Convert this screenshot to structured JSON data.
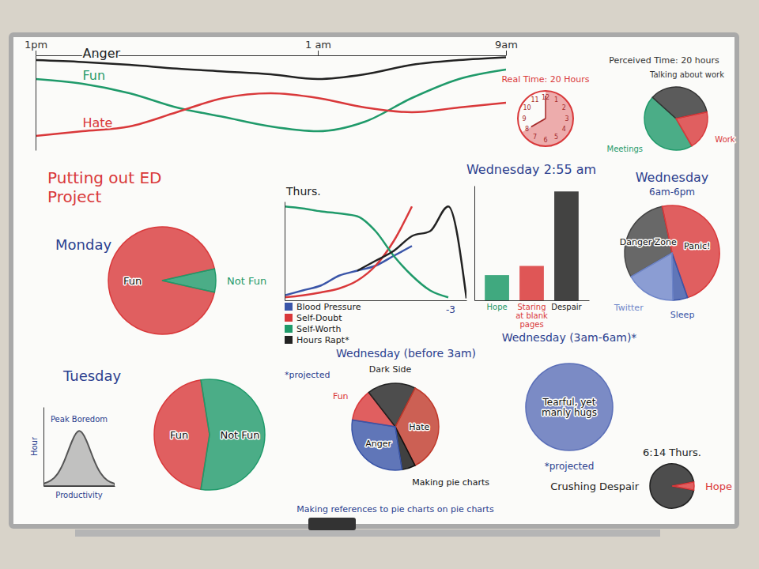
{
  "title": "Putting out ED Project",
  "chart_data": [
    {
      "type": "line",
      "x": [
        0,
        2,
        4,
        6,
        8,
        10,
        12,
        14,
        16,
        18,
        20
      ],
      "xlim": [
        0,
        20
      ],
      "xticks": [
        {
          "value": 0,
          "label": "1pm"
        },
        {
          "value": 12,
          "label": "1 am"
        },
        {
          "value": 20,
          "label": "9am"
        }
      ],
      "ylim": [
        0,
        10
      ],
      "tick_labels": "x",
      "series": [
        {
          "name": "Anger",
          "color": "#222222",
          "values": [
            9.5,
            9.3,
            9,
            8.6,
            8.3,
            8,
            7.5,
            8,
            9,
            9.5,
            9.8
          ]
        },
        {
          "name": "Fun",
          "color": "#1f9a6a",
          "values": [
            7.5,
            7,
            6,
            4.5,
            3.5,
            2.5,
            2,
            3,
            5.5,
            7.5,
            8.5
          ]
        },
        {
          "name": "Hate",
          "color": "#d9383a",
          "values": [
            1.5,
            2,
            2.5,
            4,
            5.5,
            6,
            5.5,
            4.5,
            4,
            4.5,
            5
          ]
        }
      ]
    },
    {
      "type": "clock",
      "title": "Real Time: 20 Hours",
      "dial": [
        12,
        1,
        2,
        3,
        4,
        5,
        6,
        7,
        8,
        9,
        10,
        11
      ],
      "hours": 20,
      "color": "#d9383a"
    },
    {
      "type": "pie",
      "title": "Perceived Time: 20 hours",
      "categories": [
        "Meetings",
        "Talking about work",
        "Work"
      ],
      "values": [
        45,
        35,
        20
      ],
      "colors": [
        "#1f9a6a",
        "#333333",
        "#d9383a"
      ]
    },
    {
      "type": "pie",
      "title": "Monday",
      "categories": [
        "Fun",
        "Not Fun"
      ],
      "values": [
        93,
        7
      ],
      "colors": [
        "#d9383a",
        "#1f9a6a"
      ]
    },
    {
      "type": "area",
      "x": [
        0,
        1,
        2,
        3,
        4,
        5,
        6,
        7,
        8,
        9,
        10
      ],
      "values": [
        3,
        6,
        14,
        32,
        58,
        75,
        60,
        34,
        15,
        6,
        3
      ],
      "xlim": [
        0,
        10
      ],
      "ylim": [
        0,
        100
      ],
      "tick_labels": false,
      "xlabel": "Productivity",
      "ylabel": "Hour",
      "color": "#555555",
      "annotations": [
        "Peak Boredom"
      ]
    },
    {
      "type": "pie",
      "title": "Tuesday",
      "categories": [
        "Fun",
        "Not Fun"
      ],
      "values": [
        45,
        55
      ],
      "colors": [
        "#d9383a",
        "#1f9a6a"
      ]
    },
    {
      "type": "line",
      "title": "Thurs.",
      "x": [
        0,
        1,
        2,
        3,
        4,
        5,
        6,
        7,
        8,
        9,
        10
      ],
      "xlim": [
        0,
        10
      ],
      "ylim": [
        0,
        10
      ],
      "tick_labels": false,
      "legend": "bottom",
      "series": [
        {
          "name": "Blood Pressure",
          "color": "#3a55a8",
          "values": [
            0.5,
            1,
            1.5,
            2.5,
            3,
            3.5,
            4.5,
            5.5,
            null,
            null,
            null
          ]
        },
        {
          "name": "Self-Doubt",
          "color": "#d9383a",
          "values": [
            0.3,
            0.5,
            0.8,
            1.2,
            2,
            3.5,
            6,
            9.5,
            null,
            null,
            null
          ]
        },
        {
          "name": "Self-Worth",
          "color": "#1f9a6a",
          "values": [
            9.5,
            9.3,
            9,
            8.8,
            8.5,
            7,
            4.5,
            2.5,
            1,
            0.3,
            null
          ]
        },
        {
          "name": "Hours Rapt*",
          "color": "#222222",
          "values": [
            null,
            null,
            null,
            null,
            3,
            4,
            5,
            6.5,
            7,
            9.5,
            0.2
          ]
        }
      ],
      "annotations": [
        "*projected",
        "-3"
      ]
    },
    {
      "type": "bar",
      "title": "Wednesday 2:55 am",
      "categories": [
        "Hope",
        "Staring at blank pages",
        "Despair"
      ],
      "values": [
        22,
        30,
        95
      ],
      "colors": [
        "#1f9a6a",
        "#d9383a",
        "#222222"
      ],
      "ylim": [
        0,
        100
      ],
      "tick_labels": "x"
    },
    {
      "type": "pie",
      "title": "Wednesday",
      "subtitle": "6am-6pm",
      "categories": [
        "Danger Zone",
        "Panic!",
        "Sleep",
        "Twitter"
      ],
      "values": [
        30,
        48,
        5,
        17
      ],
      "colors": [
        "#444444",
        "#d9383a",
        "#3a55a8",
        "#6f86c9"
      ]
    },
    {
      "type": "pie",
      "title": "Wednesday (before 3am)",
      "categories": [
        "Fun",
        "Dark Side",
        "Hate",
        "Making pie charts",
        "Anger"
      ],
      "values": [
        12,
        18,
        35,
        5,
        30
      ],
      "colors": [
        "#d9383a",
        "#222222",
        "#c0392b",
        "#111111",
        "#3a55a8"
      ],
      "annotations": [
        "Making references to pie charts on pie charts"
      ]
    },
    {
      "type": "pie",
      "title": "Wednesday (3am-6am)*",
      "categories": [
        "Tearful, yet manly hugs"
      ],
      "values": [
        100
      ],
      "colors": [
        "#5b6fb8"
      ],
      "annotations": [
        "*projected"
      ]
    },
    {
      "type": "pie",
      "title": "6:14 Thurs.",
      "categories": [
        "Crushing Despair",
        "Hope"
      ],
      "values": [
        94,
        6
      ],
      "colors": [
        "#222222",
        "#d9383a"
      ]
    }
  ]
}
